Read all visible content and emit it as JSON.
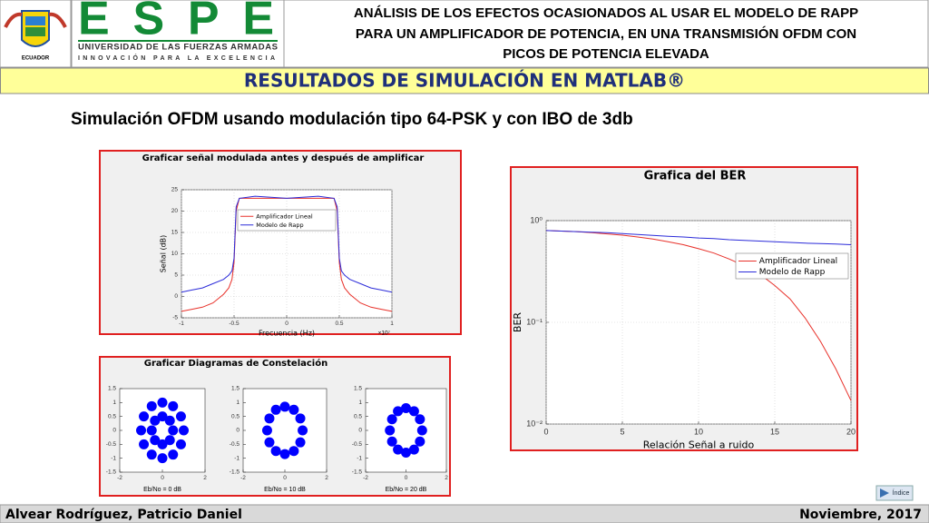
{
  "header": {
    "emblem_text": "ECUADOR",
    "logo": "ESPE",
    "university": "UNIVERSIDAD DE LAS FUERZAS ARMADAS",
    "motto": "INNOVACIÓN PARA LA EXCELENCIA",
    "title_lines": [
      "ANÁLISIS DE LOS EFECTOS OCASIONADOS AL USAR EL MODELO DE RAPP",
      "PARA UN AMPLIFICADOR DE POTENCIA, EN UNA TRANSMISIÓN OFDM CON",
      "PICOS DE POTENCIA ELEVADA"
    ]
  },
  "section": "RESULTADOS DE SIMULACIÓN EN MATLAB®",
  "subtitle": "Simulación OFDM usando modulación tipo 64-PSK y con IBO de 3db",
  "chart_data": [
    {
      "type": "line",
      "title": "Graficar señal modulada antes y después de amplificar",
      "xlabel": "Frecuencia (Hz)",
      "ylabel": "Señal (dB)",
      "x_offset_text": "×10⁷",
      "x": [
        -1,
        -0.9,
        -0.8,
        -0.7,
        -0.6,
        -0.55,
        -0.52,
        -0.5,
        -0.48,
        -0.45,
        -0.3,
        0,
        0.3,
        0.45,
        0.48,
        0.5,
        0.52,
        0.55,
        0.6,
        0.7,
        0.8,
        0.9,
        1
      ],
      "series": [
        {
          "name": "Amplificador Lineal",
          "color": "#e8312a",
          "values": [
            -3.5,
            -3,
            -2.5,
            -1.5,
            0.5,
            2,
            4,
            8,
            20,
            23,
            23,
            23,
            23,
            23,
            20,
            8,
            4,
            2,
            0.5,
            -1.5,
            -2.5,
            -3,
            -3.5
          ]
        },
        {
          "name": "Modelo de Rapp",
          "color": "#2b2bd9",
          "values": [
            1,
            1.5,
            2,
            3,
            4,
            5,
            6,
            9,
            21,
            23,
            23.5,
            23,
            23.5,
            23,
            21,
            9,
            6,
            5,
            4,
            3,
            2,
            1.5,
            1
          ]
        }
      ],
      "xlim": [
        -1,
        1
      ],
      "xticks": [
        -1,
        -0.5,
        0,
        0.5,
        1
      ],
      "ylim": [
        -5,
        25
      ],
      "yticks": [
        -5,
        0,
        5,
        10,
        15,
        20,
        25
      ],
      "grid": true,
      "legend": "upper center"
    },
    {
      "type": "scatter",
      "title": "Graficar Diagramas de Constelación",
      "color": "#0000ff",
      "panels": [
        {
          "xlabel": "Eb/No = 0 dB",
          "xlim": [
            -2,
            2
          ],
          "ylim": [
            -1.5,
            1.5
          ],
          "xticks": [
            -2,
            0,
            2
          ],
          "yticks": [
            -1.5,
            -1,
            -0.5,
            0,
            0.5,
            1,
            1.5
          ],
          "x": [
            1,
            0.87,
            0.5,
            0,
            -0.5,
            -0.87,
            -1,
            -0.87,
            -0.5,
            0,
            0.5,
            0.87,
            0.5,
            0.35,
            0,
            -0.35,
            -0.5,
            -0.35,
            0,
            0.35
          ],
          "y": [
            0,
            0.5,
            0.87,
            1,
            0.87,
            0.5,
            0,
            -0.5,
            -0.87,
            -1,
            -0.87,
            -0.5,
            0,
            0.35,
            0.5,
            0.35,
            0,
            -0.35,
            -0.5,
            -0.35
          ]
        },
        {
          "xlabel": "Eb/No = 10 dB",
          "xlim": [
            -2,
            2
          ],
          "ylim": [
            -1.5,
            1.5
          ],
          "xticks": [
            -2,
            0,
            2
          ],
          "yticks": [
            -1.5,
            -1,
            -0.5,
            0,
            0.5,
            1,
            1.5
          ],
          "x": [
            0.85,
            0.74,
            0.43,
            0,
            -0.43,
            -0.74,
            -0.85,
            -0.74,
            -0.43,
            0,
            0.43,
            0.74
          ],
          "y": [
            0,
            0.43,
            0.74,
            0.85,
            0.74,
            0.43,
            0,
            -0.43,
            -0.74,
            -0.85,
            -0.74,
            -0.43
          ]
        },
        {
          "xlabel": "Eb/No = 20 dB",
          "xlim": [
            -2,
            2
          ],
          "ylim": [
            -1.5,
            1.5
          ],
          "xticks": [
            -2,
            0,
            2
          ],
          "yticks": [
            -1.5,
            -1,
            -0.5,
            0,
            0.5,
            1,
            1.5
          ],
          "x": [
            0.8,
            0.69,
            0.4,
            0,
            -0.4,
            -0.69,
            -0.8,
            -0.69,
            -0.4,
            0,
            0.4,
            0.69
          ],
          "y": [
            0,
            0.4,
            0.69,
            0.8,
            0.69,
            0.4,
            0,
            -0.4,
            -0.69,
            -0.8,
            -0.69,
            -0.4
          ]
        }
      ]
    },
    {
      "type": "line",
      "title": "Grafica del BER",
      "xlabel": "Relación Señal a ruido",
      "ylabel": "BER",
      "log_y": true,
      "x": [
        0,
        1,
        2,
        3,
        4,
        5,
        6,
        7,
        8,
        9,
        10,
        11,
        12,
        13,
        14,
        15,
        16,
        17,
        18,
        19,
        20
      ],
      "series": [
        {
          "name": "Amplificador Lineal",
          "color": "#e8312a",
          "values": [
            0.8,
            0.79,
            0.78,
            0.76,
            0.74,
            0.72,
            0.69,
            0.66,
            0.62,
            0.58,
            0.53,
            0.48,
            0.42,
            0.36,
            0.3,
            0.23,
            0.17,
            0.11,
            0.065,
            0.035,
            0.017
          ]
        },
        {
          "name": "Modelo de Rapp",
          "color": "#2b2bd9",
          "values": [
            0.8,
            0.79,
            0.78,
            0.77,
            0.76,
            0.745,
            0.73,
            0.715,
            0.7,
            0.69,
            0.675,
            0.665,
            0.65,
            0.64,
            0.63,
            0.62,
            0.61,
            0.6,
            0.595,
            0.59,
            0.58
          ]
        }
      ],
      "xlim": [
        0,
        20
      ],
      "xticks": [
        0,
        5,
        10,
        15,
        20
      ],
      "ylim": [
        0.01,
        1
      ],
      "yticks": [
        {
          "value": 0.01,
          "label": "10⁻²"
        },
        {
          "value": 0.1,
          "label": "10⁻¹"
        },
        {
          "value": 1,
          "label": "10⁰"
        }
      ],
      "grid": true,
      "legend": "upper right"
    }
  ],
  "footer": {
    "author": "Alvear Rodríguez, Patricio Daniel",
    "date": "Noviembre, 2017",
    "button": "Índice"
  }
}
